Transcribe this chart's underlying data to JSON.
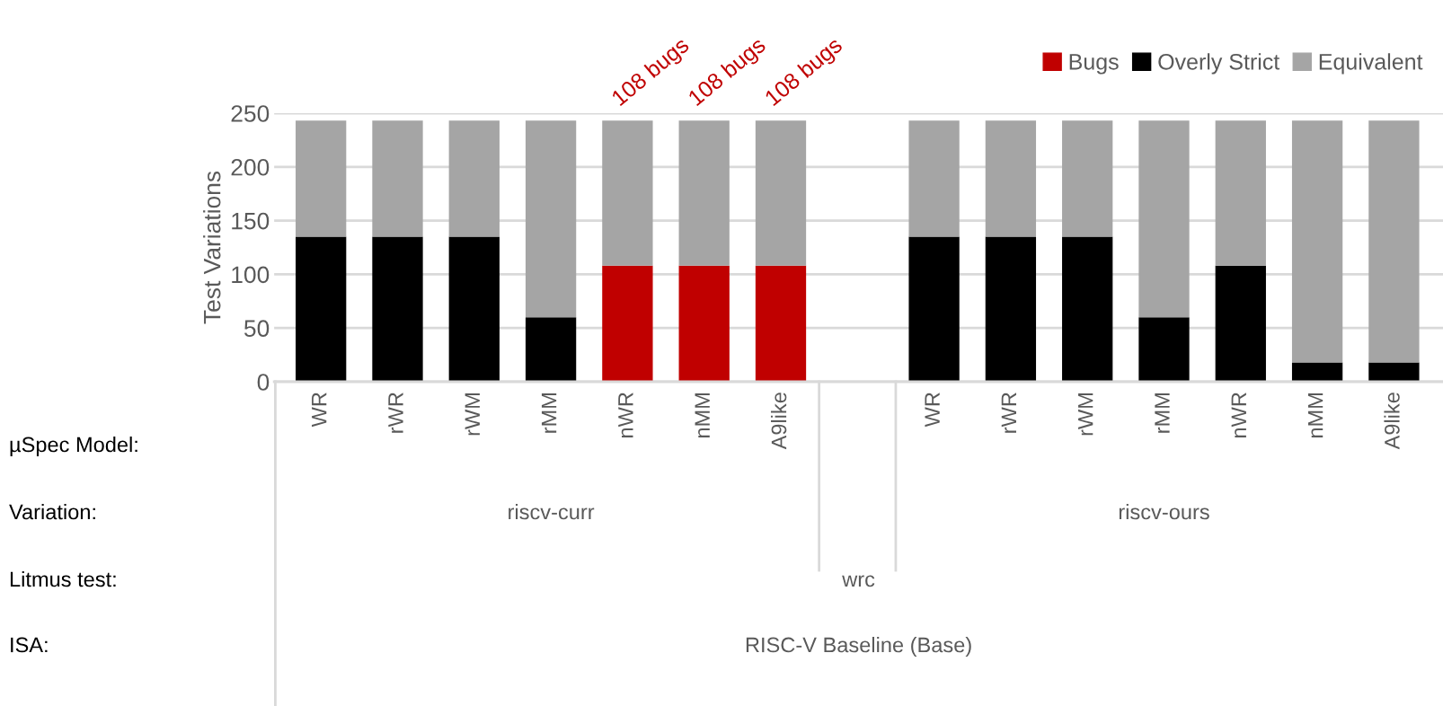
{
  "chart_data": {
    "type": "bar",
    "stacked": true,
    "ylabel": "Test Variations",
    "categories": [
      "WR",
      "rWR",
      "rWM",
      "rMM",
      "nWR",
      "nMM",
      "A9like",
      null,
      "WR",
      "rWR",
      "rWM",
      "rMM",
      "nWR",
      "nMM",
      "A9like"
    ],
    "series": [
      {
        "name": "Bugs",
        "color": "#c00000",
        "values": [
          0,
          0,
          0,
          0,
          108,
          108,
          108,
          null,
          0,
          0,
          0,
          0,
          0,
          0,
          0
        ],
        "value_labels": [
          null,
          null,
          null,
          null,
          "108 bugs",
          "108 bugs",
          "108 bugs",
          null,
          null,
          null,
          null,
          null,
          null,
          null,
          null
        ]
      },
      {
        "name": "Overly Strict",
        "color": "#000000",
        "values": [
          135,
          135,
          135,
          60,
          0,
          0,
          0,
          null,
          135,
          135,
          135,
          60,
          108,
          18,
          18
        ]
      },
      {
        "name": "Equivalent",
        "color": "#a5a5a5",
        "values": [
          108,
          108,
          108,
          183,
          135,
          135,
          135,
          null,
          108,
          108,
          108,
          183,
          135,
          225,
          225
        ]
      }
    ],
    "ylim": [
      0,
      250
    ],
    "yticks": [
      0,
      50,
      100,
      150,
      200,
      250
    ],
    "grid": "y",
    "legend": "top right",
    "annotations": [
      "µSpec Model:",
      "Variation:",
      "riscv-curr",
      "riscv-ours",
      "Litmus test:",
      "wrc",
      "ISA:",
      "RISC-V Baseline (Base)"
    ]
  }
}
